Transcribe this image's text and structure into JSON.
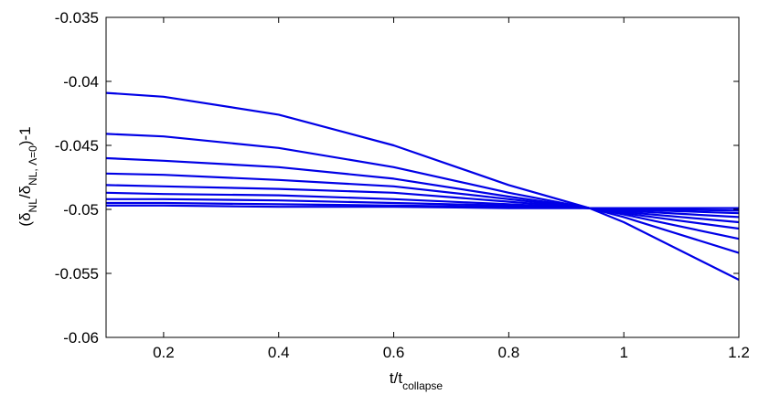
{
  "chart_data": {
    "type": "line",
    "title": "",
    "xlabel": {
      "main": "t/t",
      "sub": "collapse"
    },
    "ylabel": {
      "open": "(δ",
      "sub1": "NL",
      "slash": "/δ",
      "sub2": "NL, Λ=0",
      "close": ")-1"
    },
    "xlim": [
      0.1,
      1.2
    ],
    "ylim": [
      -0.06,
      -0.035
    ],
    "xticks": [
      0.2,
      0.4,
      0.6,
      0.8,
      1,
      1.2
    ],
    "xtick_labels": [
      "0.2",
      "0.4",
      "0.6",
      "0.8",
      "1",
      "1.2"
    ],
    "yticks": [
      -0.06,
      -0.055,
      -0.05,
      -0.045,
      -0.04,
      -0.035
    ],
    "ytick_labels": [
      "-0.06",
      "-0.055",
      "-0.05",
      "-0.045",
      "-0.04",
      "-0.035"
    ],
    "grid": false,
    "line_color": "#0000e6",
    "crossing_point": [
      0.94,
      -0.0499
    ],
    "series": [
      {
        "x": [
          0.1,
          0.2,
          0.4,
          0.6,
          0.8,
          0.94,
          1.0,
          1.2
        ],
        "values": [
          -0.0409,
          -0.0412,
          -0.0426,
          -0.045,
          -0.0481,
          -0.0499,
          -0.051,
          -0.0555
        ]
      },
      {
        "x": [
          0.1,
          0.2,
          0.4,
          0.6,
          0.8,
          0.94,
          1.0,
          1.2
        ],
        "values": [
          -0.0441,
          -0.0443,
          -0.0452,
          -0.0467,
          -0.0487,
          -0.0499,
          -0.0506,
          -0.0534
        ]
      },
      {
        "x": [
          0.1,
          0.2,
          0.4,
          0.6,
          0.8,
          0.94,
          1.0,
          1.2
        ],
        "values": [
          -0.046,
          -0.0462,
          -0.0467,
          -0.0476,
          -0.049,
          -0.0499,
          -0.0504,
          -0.0523
        ]
      },
      {
        "x": [
          0.1,
          0.2,
          0.4,
          0.6,
          0.8,
          0.94,
          1.0,
          1.2
        ],
        "values": [
          -0.0472,
          -0.0473,
          -0.0477,
          -0.0482,
          -0.0492,
          -0.0499,
          -0.0503,
          -0.0515
        ]
      },
      {
        "x": [
          0.1,
          0.2,
          0.4,
          0.6,
          0.8,
          0.94,
          1.0,
          1.2
        ],
        "values": [
          -0.0481,
          -0.0482,
          -0.0484,
          -0.0487,
          -0.0494,
          -0.0499,
          -0.0502,
          -0.051
        ]
      },
      {
        "x": [
          0.1,
          0.2,
          0.4,
          0.6,
          0.8,
          0.94,
          1.0,
          1.2
        ],
        "values": [
          -0.0487,
          -0.0488,
          -0.0489,
          -0.0492,
          -0.0496,
          -0.0499,
          -0.0501,
          -0.0506
        ]
      },
      {
        "x": [
          0.1,
          0.2,
          0.4,
          0.6,
          0.8,
          0.94,
          1.0,
          1.2
        ],
        "values": [
          -0.0492,
          -0.0492,
          -0.0493,
          -0.0495,
          -0.0497,
          -0.0499,
          -0.05,
          -0.0503
        ]
      },
      {
        "x": [
          0.1,
          0.2,
          0.4,
          0.6,
          0.8,
          0.94,
          1.0,
          1.2
        ],
        "values": [
          -0.0495,
          -0.0495,
          -0.0496,
          -0.0497,
          -0.0498,
          -0.0499,
          -0.04995,
          -0.0501
        ]
      },
      {
        "x": [
          0.1,
          0.2,
          0.4,
          0.6,
          0.8,
          0.94,
          1.0,
          1.2
        ],
        "values": [
          -0.0497,
          -0.0497,
          -0.0498,
          -0.0498,
          -0.0499,
          -0.0499,
          -0.0499,
          -0.0499
        ]
      }
    ]
  }
}
